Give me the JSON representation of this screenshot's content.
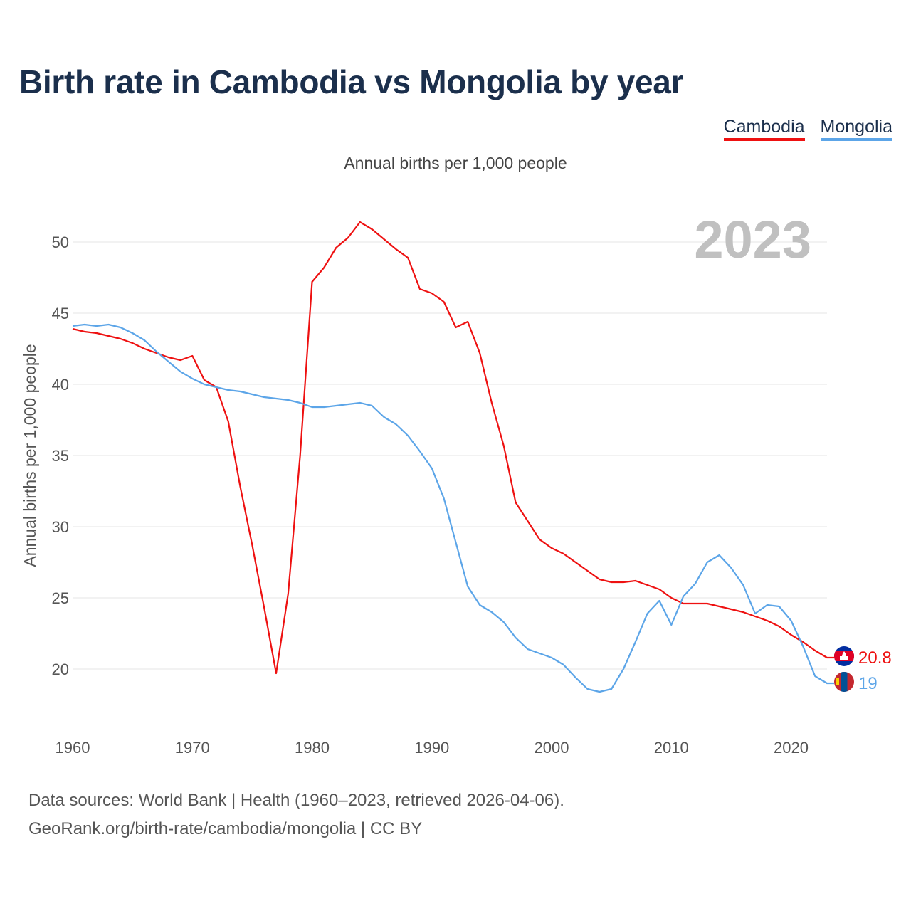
{
  "title": "Birth rate in Cambodia vs Mongolia by year",
  "legend": [
    {
      "name": "Cambodia",
      "color": "#ee1111"
    },
    {
      "name": "Mongolia",
      "color": "#5ca5e8"
    }
  ],
  "footer": {
    "line1": "Data sources: World Bank | Health (1960–2023, retrieved 2026-04-06).",
    "line2": "GeoRank.org/birth-rate/cambodia/mongolia | CC BY"
  },
  "chart_data": {
    "type": "line",
    "title": "Birth rate in Cambodia vs Mongolia by year",
    "subtitle": "Annual births per 1,000 people",
    "xlabel": "",
    "ylabel": "Annual births per 1,000 people",
    "year_label": "2023",
    "xlim": [
      1960,
      2023
    ],
    "ylim": [
      17.5,
      52.5
    ],
    "x_ticks": [
      1960,
      1970,
      1980,
      1990,
      2000,
      2010,
      2020
    ],
    "y_ticks": [
      20,
      25,
      30,
      35,
      40,
      45,
      50
    ],
    "grid": true,
    "legend_position": "top-right",
    "x": [
      1960,
      1961,
      1962,
      1963,
      1964,
      1965,
      1966,
      1967,
      1968,
      1969,
      1970,
      1971,
      1972,
      1973,
      1974,
      1975,
      1976,
      1977,
      1978,
      1979,
      1980,
      1981,
      1982,
      1983,
      1984,
      1985,
      1986,
      1987,
      1988,
      1989,
      1990,
      1991,
      1992,
      1993,
      1994,
      1995,
      1996,
      1997,
      1998,
      1999,
      2000,
      2001,
      2002,
      2003,
      2004,
      2005,
      2006,
      2007,
      2008,
      2009,
      2010,
      2011,
      2012,
      2013,
      2014,
      2015,
      2016,
      2017,
      2018,
      2019,
      2020,
      2021,
      2022,
      2023
    ],
    "series": [
      {
        "name": "Cambodia",
        "color": "#ee1111",
        "end_label": "20.8",
        "values": [
          43.9,
          43.7,
          43.6,
          43.4,
          43.2,
          42.9,
          42.5,
          42.2,
          41.9,
          41.7,
          42.0,
          40.3,
          39.8,
          37.4,
          32.8,
          28.7,
          24.3,
          19.7,
          25.3,
          35.0,
          47.2,
          48.2,
          49.6,
          50.3,
          51.4,
          50.9,
          50.2,
          49.5,
          48.9,
          46.7,
          46.4,
          45.8,
          44.0,
          44.4,
          42.2,
          38.7,
          35.7,
          31.7,
          30.4,
          29.1,
          28.5,
          28.1,
          27.5,
          26.9,
          26.3,
          26.1,
          26.1,
          26.2,
          25.9,
          25.6,
          25.0,
          24.6,
          24.6,
          24.6,
          24.4,
          24.2,
          24.0,
          23.7,
          23.4,
          23.0,
          22.4,
          21.9,
          21.3,
          20.8
        ]
      },
      {
        "name": "Mongolia",
        "color": "#5ca5e8",
        "end_label": "19",
        "values": [
          44.1,
          44.2,
          44.1,
          44.2,
          44.0,
          43.6,
          43.1,
          42.3,
          41.6,
          40.9,
          40.4,
          40.0,
          39.8,
          39.6,
          39.5,
          39.3,
          39.1,
          39.0,
          38.9,
          38.7,
          38.4,
          38.4,
          38.5,
          38.6,
          38.7,
          38.5,
          37.7,
          37.2,
          36.4,
          35.3,
          34.1,
          32.0,
          28.9,
          25.8,
          24.5,
          24.0,
          23.3,
          22.2,
          21.4,
          21.1,
          20.8,
          20.3,
          19.4,
          18.6,
          18.4,
          18.6,
          20.0,
          21.9,
          23.9,
          24.8,
          23.1,
          25.1,
          26.0,
          27.5,
          28.0,
          27.1,
          25.9,
          23.9,
          24.5,
          24.4,
          23.4,
          21.6,
          19.5,
          19.0
        ]
      }
    ]
  }
}
